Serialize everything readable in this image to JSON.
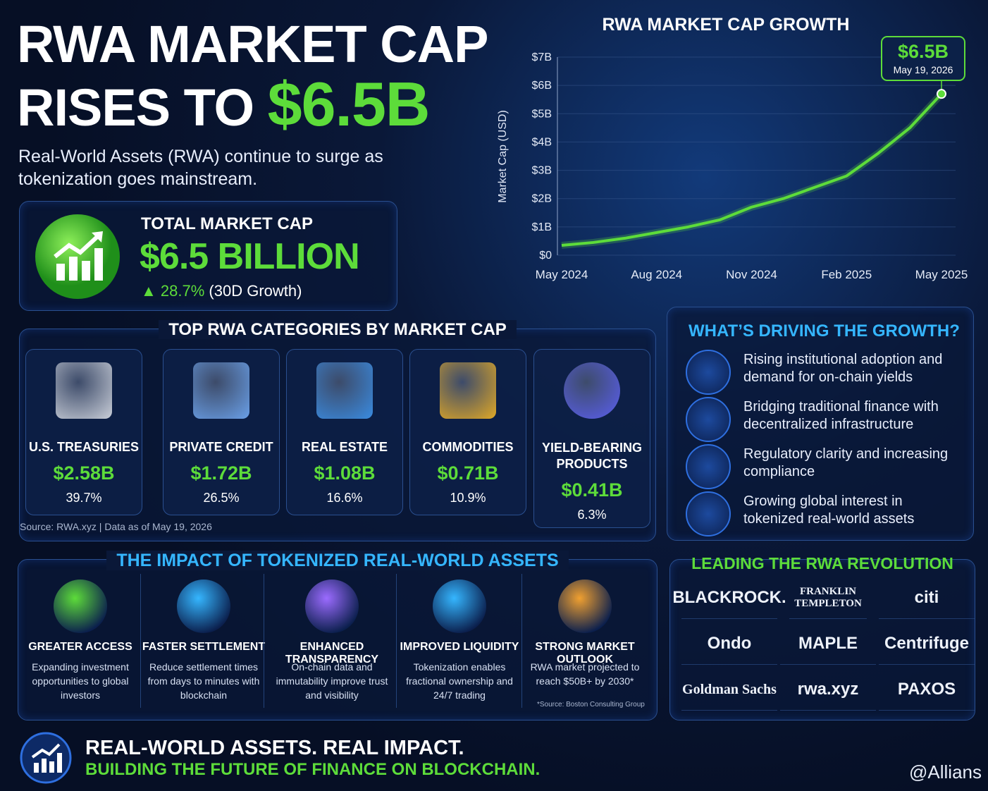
{
  "header": {
    "title_line1": "RWA MARKET CAP",
    "title_line2": "RISES TO",
    "title_highlight": "$6.5B",
    "subtitle": "Real-World Assets (RWA) continue to surge as tokenization goes mainstream."
  },
  "total": {
    "label": "TOTAL MARKET CAP",
    "value": "$6.5 BILLION",
    "growth": "28.7%",
    "growth_note": "(30D Growth)"
  },
  "chart_data": {
    "type": "line",
    "title": "RWA MARKET CAP GROWTH",
    "y_label": "Market Cap (USD)",
    "categories": [
      "May 2024",
      null,
      null,
      "Aug 2024",
      null,
      null,
      "Nov 2024",
      null,
      null,
      "Feb 2025",
      null,
      null,
      "May 2025"
    ],
    "series": [
      {
        "name": "RWA Market Cap",
        "color": "#5ddc3a",
        "values": [
          0.35,
          0.45,
          0.6,
          0.8,
          1.0,
          1.25,
          1.7,
          2.0,
          2.4,
          2.8,
          3.6,
          4.5,
          5.7
        ]
      }
    ],
    "ylim": [
      0,
      7
    ],
    "yticks": [
      {
        "value": 0,
        "label": "$0"
      },
      {
        "value": 1,
        "label": "$1B"
      },
      {
        "value": 2,
        "label": "$2B"
      },
      {
        "value": 3,
        "label": "$3B"
      },
      {
        "value": 4,
        "label": "$4B"
      },
      {
        "value": 5,
        "label": "$5B"
      },
      {
        "value": 6,
        "label": "$6B"
      },
      {
        "value": 7,
        "label": "$7B"
      }
    ],
    "annotation": {
      "value": "$6.5B",
      "date": "May 19, 2026"
    }
  },
  "categories": {
    "title": "TOP RWA CATEGORIES BY MARKET CAP",
    "items": [
      {
        "name": "U.S. TREASURIES",
        "value": "$2.58B",
        "share": "39.7%"
      },
      {
        "name": "PRIVATE CREDIT",
        "value": "$1.72B",
        "share": "26.5%"
      },
      {
        "name": "REAL ESTATE",
        "value": "$1.08B",
        "share": "16.6%"
      },
      {
        "name": "COMMODITIES",
        "value": "$0.71B",
        "share": "10.9%"
      },
      {
        "name": "YIELD-BEARING PRODUCTS",
        "value": "$0.41B",
        "share": "6.3%"
      }
    ],
    "source": "Source: RWA.xyz | Data as of May 19, 2026"
  },
  "drivers": {
    "title": "WHAT’S DRIVING THE GROWTH?",
    "items": [
      "Rising institutional adoption and demand for on-chain yields",
      "Bridging traditional finance with decentralized infrastructure",
      "Regulatory clarity and increasing compliance",
      "Growing global interest in tokenized real-world assets"
    ]
  },
  "impact": {
    "title": "THE IMPACT OF TOKENIZED REAL-WORLD ASSETS",
    "items": [
      {
        "title": "GREATER ACCESS",
        "text": "Expanding investment opportunities to global investors"
      },
      {
        "title": "FASTER SETTLEMENT",
        "text": "Reduce settlement times from days to minutes with blockchain"
      },
      {
        "title": "ENHANCED TRANSPARENCY",
        "text": "On-chain data and immutability improve trust and visibility"
      },
      {
        "title": "IMPROVED LIQUIDITY",
        "text": "Tokenization enables fractional ownership and 24/7 trading"
      },
      {
        "title": "STRONG MARKET OUTLOOK",
        "text": "RWA market projected to reach $50B+ by 2030*"
      }
    ],
    "footnote": "*Source: Boston Consulting Group"
  },
  "leaders": {
    "title": "LEADING THE RWA REVOLUTION",
    "logos": [
      "BLACKROCK.",
      "FRANKLIN TEMPLETON",
      "citi",
      "Ondo",
      "MAPLE",
      "Centrifuge",
      "Goldman Sachs",
      "rwa.xyz",
      "PAXOS"
    ]
  },
  "footer": {
    "line1": "REAL-WORLD ASSETS. REAL IMPACT.",
    "line2": "BUILDING THE FUTURE OF FINANCE ON BLOCKCHAIN.",
    "watermark": "@Allians"
  }
}
